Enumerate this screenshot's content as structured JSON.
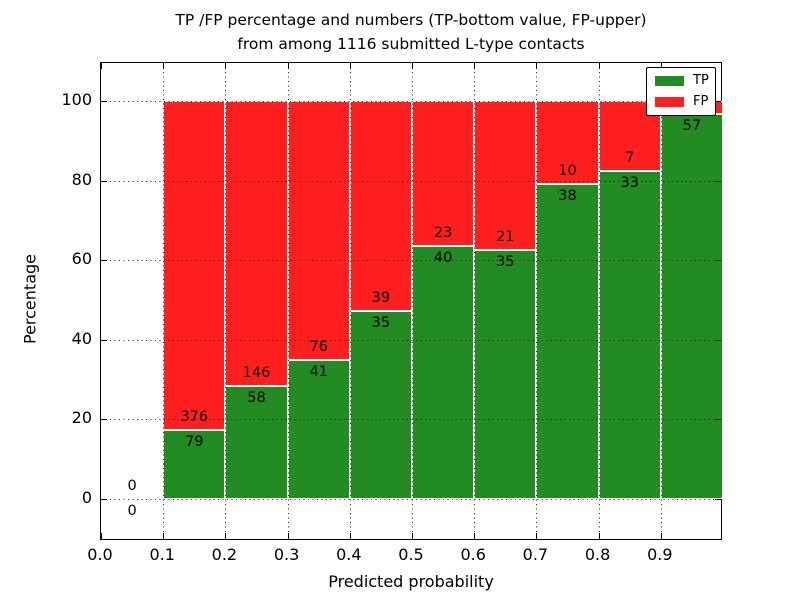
{
  "title": {
    "line1": "TP /FP percentage and numbers (TP-bottom value, FP-upper)",
    "line2": "from among 1116 submitted L-type contacts"
  },
  "axes": {
    "xlabel": "Predicted probability",
    "ylabel": "Percentage",
    "xticks": [
      {
        "v": 0.0,
        "label": "0.0"
      },
      {
        "v": 0.1,
        "label": "0.1"
      },
      {
        "v": 0.2,
        "label": "0.2"
      },
      {
        "v": 0.3,
        "label": "0.3"
      },
      {
        "v": 0.4,
        "label": "0.4"
      },
      {
        "v": 0.5,
        "label": "0.5"
      },
      {
        "v": 0.6,
        "label": "0.6"
      },
      {
        "v": 0.7,
        "label": "0.7"
      },
      {
        "v": 0.8,
        "label": "0.8"
      },
      {
        "v": 0.9,
        "label": "0.9"
      }
    ],
    "yticks": [
      {
        "v": 0,
        "label": "0"
      },
      {
        "v": 20,
        "label": "20"
      },
      {
        "v": 40,
        "label": "40"
      },
      {
        "v": 60,
        "label": "60"
      },
      {
        "v": 80,
        "label": "80"
      },
      {
        "v": 100,
        "label": "100"
      }
    ],
    "xgrid": [
      0.1,
      0.2,
      0.3,
      0.4,
      0.5,
      0.6,
      0.7,
      0.8,
      0.9
    ],
    "ygrid": [
      0,
      20,
      40,
      60,
      80,
      100
    ],
    "xlim": [
      0.0,
      1.0
    ],
    "ylim": [
      -10.5,
      109.5
    ],
    "grid_style": "dotted",
    "grid_above_bars": true
  },
  "legend": {
    "position": "upper right",
    "items": [
      {
        "label": "TP",
        "color": "#228b22"
      },
      {
        "label": "FP",
        "color": "#ff1f1f"
      }
    ]
  },
  "colors": {
    "tp": "#228b22",
    "fp": "#ff1f1f",
    "background": "#ffffff",
    "text": "#000000",
    "bar_edge": "#ffffff"
  },
  "chart_data": {
    "type": "bar",
    "stacked": true,
    "orientation": "vertical",
    "title": "TP /FP percentage and numbers (TP-bottom value, FP-upper) from among 1116 submitted L-type contacts",
    "xlabel": "Predicted probability",
    "ylabel": "Percentage",
    "bin_width": 0.1,
    "series": [
      {
        "name": "TP",
        "color": "#228b22",
        "counts": [
          0,
          79,
          58,
          41,
          35,
          40,
          35,
          38,
          33,
          57
        ]
      },
      {
        "name": "FP",
        "color": "#ff1f1f",
        "counts": [
          0,
          376,
          146,
          76,
          39,
          23,
          21,
          10,
          7,
          null
        ]
      }
    ],
    "bins": [
      {
        "x": 0.0,
        "tp_pct": null,
        "tp_label": "0",
        "fp_label": "0"
      },
      {
        "x": 0.1,
        "tp_pct": 17.36,
        "tp_label": "79",
        "fp_label": "376"
      },
      {
        "x": 0.2,
        "tp_pct": 28.43,
        "tp_label": "58",
        "fp_label": "146"
      },
      {
        "x": 0.3,
        "tp_pct": 35.04,
        "tp_label": "41",
        "fp_label": "76"
      },
      {
        "x": 0.4,
        "tp_pct": 47.3,
        "tp_label": "35",
        "fp_label": "39"
      },
      {
        "x": 0.5,
        "tp_pct": 63.49,
        "tp_label": "40",
        "fp_label": "23"
      },
      {
        "x": 0.6,
        "tp_pct": 62.5,
        "tp_label": "35",
        "fp_label": "21"
      },
      {
        "x": 0.7,
        "tp_pct": 79.17,
        "tp_label": "38",
        "fp_label": "10"
      },
      {
        "x": 0.8,
        "tp_pct": 82.5,
        "tp_label": "33",
        "fp_label": "7"
      },
      {
        "x": 0.9,
        "tp_pct": 96.61,
        "tp_label": "57",
        "fp_label": ""
      }
    ]
  }
}
